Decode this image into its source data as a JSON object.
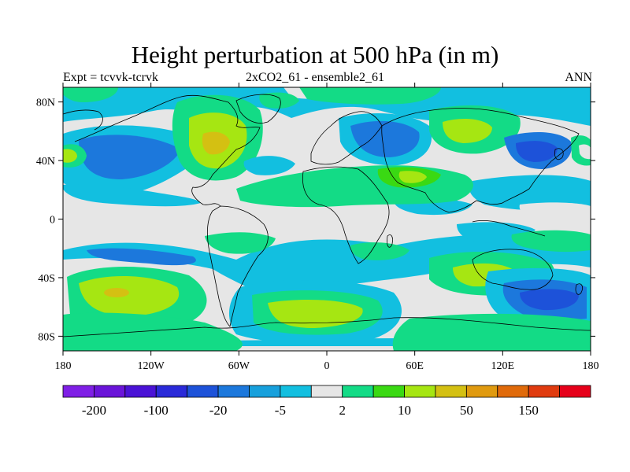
{
  "title": "Height perturbation at 500 hPa (in m)",
  "subtitle_left": "Expt = tcvvk-tcrvk",
  "subtitle_center": "2xCO2_61 - ensemble2_61",
  "subtitle_right": "ANN",
  "map": {
    "background_color": "#e6e6e6",
    "lat_ticks": [
      {
        "label": "80N",
        "lat": 80
      },
      {
        "label": "40N",
        "lat": 40
      },
      {
        "label": "0",
        "lat": 0
      },
      {
        "label": "40S",
        "lat": -40
      },
      {
        "label": "80S",
        "lat": -80
      }
    ],
    "lon_ticks": [
      {
        "label": "180",
        "lon": -180
      },
      {
        "label": "120W",
        "lon": -120
      },
      {
        "label": "60W",
        "lon": -60
      },
      {
        "label": "0",
        "lon": 0
      },
      {
        "label": "60E",
        "lon": 60
      },
      {
        "label": "120E",
        "lon": 120
      },
      {
        "label": "180",
        "lon": 180
      }
    ],
    "lat_range": [
      -90,
      90
    ],
    "lon_range": [
      -180,
      180
    ]
  },
  "colorbar": {
    "colors": [
      "#7f1fe6",
      "#6a14d9",
      "#4a12d6",
      "#2a2ad9",
      "#1d52d9",
      "#1c78dc",
      "#17a0dc",
      "#12bfe0",
      "#e6e6e6",
      "#13db86",
      "#3ad913",
      "#a6e612",
      "#d4c012",
      "#e09a0f",
      "#e06a0a",
      "#e03b0f",
      "#e6001a"
    ],
    "labels": [
      {
        "text": "-200",
        "after_box": 1
      },
      {
        "text": "-100",
        "after_box": 3
      },
      {
        "text": "-20",
        "after_box": 5
      },
      {
        "text": "-5",
        "after_box": 7
      },
      {
        "text": "2",
        "after_box": 9
      },
      {
        "text": "10",
        "after_box": 11
      },
      {
        "text": "50",
        "after_box": 13
      },
      {
        "text": "150",
        "after_box": 15
      }
    ]
  }
}
